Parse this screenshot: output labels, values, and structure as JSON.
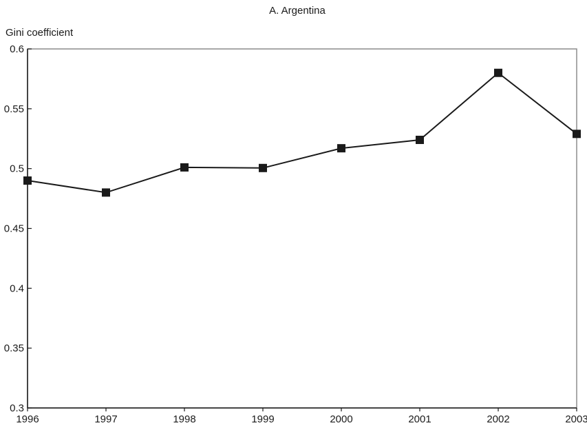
{
  "chart_data": {
    "type": "line",
    "title": "A. Argentina",
    "ylabel": "Gini coefficient",
    "xlabel": "",
    "x": [
      1996,
      1997,
      1998,
      1999,
      2000,
      2001,
      2002,
      2003
    ],
    "x_tick_labels": [
      "1996",
      "1997",
      "1998",
      "1999",
      "2000",
      "2001",
      "2002",
      "2003"
    ],
    "y_tick_labels": [
      "0.3",
      "0.35",
      "0.4",
      "0.45",
      "0.5",
      "0.55",
      "0.6"
    ],
    "y_ticks": [
      0.3,
      0.35,
      0.4,
      0.45,
      0.5,
      0.55,
      0.6
    ],
    "ylim": [
      0.3,
      0.6
    ],
    "grid": false,
    "series": [
      {
        "values": [
          0.49,
          0.48,
          0.501,
          0.5005,
          0.517,
          0.524,
          0.58,
          0.529
        ],
        "color": "#1a1a1a",
        "marker": "square"
      }
    ],
    "frame_color": "#8c8c8c",
    "line_color": "#1a1a1a"
  }
}
